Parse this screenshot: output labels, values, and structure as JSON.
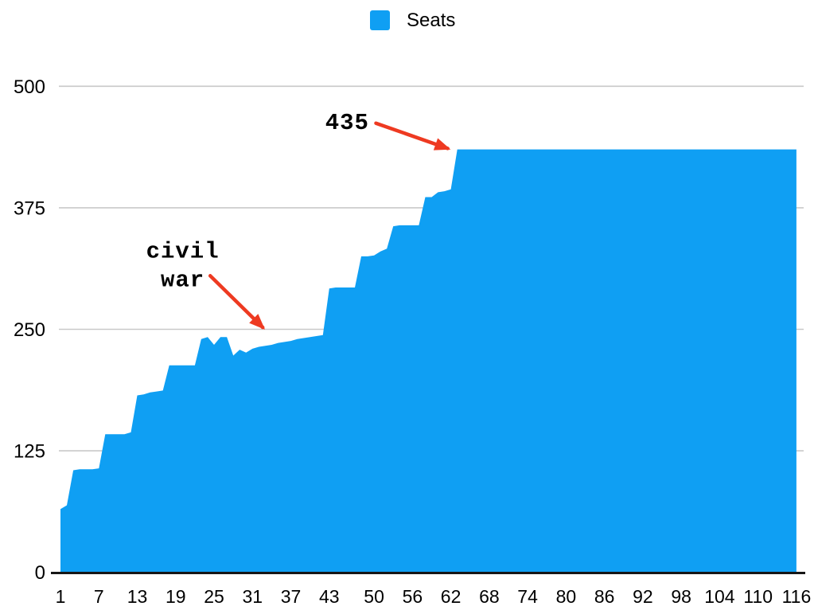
{
  "legend": {
    "items": [
      {
        "label": "Seats"
      }
    ]
  },
  "chart_data": {
    "type": "area",
    "title": "",
    "xlabel": "",
    "ylabel": "",
    "legend_position": "top-center",
    "grid": true,
    "xlim": [
      1,
      116
    ],
    "ylim": [
      0,
      500
    ],
    "yticks": [
      0,
      125,
      250,
      375,
      500
    ],
    "xticks": [
      1,
      7,
      13,
      19,
      25,
      31,
      37,
      43,
      50,
      56,
      62,
      68,
      74,
      80,
      86,
      92,
      98,
      104,
      110,
      116
    ],
    "categories_note": "x = Congress number 1..116",
    "series": [
      {
        "name": "Seats",
        "values": [
          65,
          69,
          105,
          106,
          106,
          106,
          107,
          142,
          142,
          142,
          142,
          144,
          182,
          183,
          185,
          186,
          187,
          213,
          213,
          213,
          213,
          213,
          240,
          242,
          234,
          242,
          242,
          223,
          229,
          226,
          230,
          232,
          233,
          234,
          236,
          237,
          238,
          240,
          241,
          242,
          243,
          244,
          292,
          293,
          293,
          293,
          293,
          325,
          325,
          326,
          330,
          333,
          356,
          357,
          357,
          357,
          357,
          386,
          386,
          391,
          392,
          394,
          435,
          435,
          435,
          435,
          435,
          435,
          435,
          435,
          435,
          435,
          435,
          435,
          435,
          435,
          435,
          435,
          435,
          435,
          435,
          435,
          435,
          435,
          435,
          435,
          435,
          435,
          435,
          435,
          435,
          435,
          435,
          435,
          435,
          435,
          435,
          435,
          435,
          435,
          435,
          435,
          435,
          435,
          435,
          435,
          435,
          435,
          435,
          435,
          435,
          435,
          435,
          435,
          435,
          435
        ]
      }
    ],
    "annotations": [
      {
        "id": "civil-war",
        "lines": [
          "civil",
          "war"
        ],
        "text_at": {
          "x": 20.1,
          "y": 332
        },
        "arrow": {
          "from": {
            "x": 24.4,
            "y": 305
          },
          "to": {
            "x": 32.6,
            "y": 252
          }
        }
      },
      {
        "id": "435",
        "lines": [
          "435"
        ],
        "text_at": {
          "x": 45.8,
          "y": 464
        },
        "arrow": {
          "from": {
            "x": 50.3,
            "y": 462
          },
          "to": {
            "x": 61.5,
            "y": 436
          }
        }
      }
    ],
    "colors": {
      "seats_fill": "#0f9ff3",
      "annotation_arrow": "#ee3a21",
      "gridline": "#c9c9c9",
      "axis": "#161616",
      "text": "#000000"
    }
  }
}
